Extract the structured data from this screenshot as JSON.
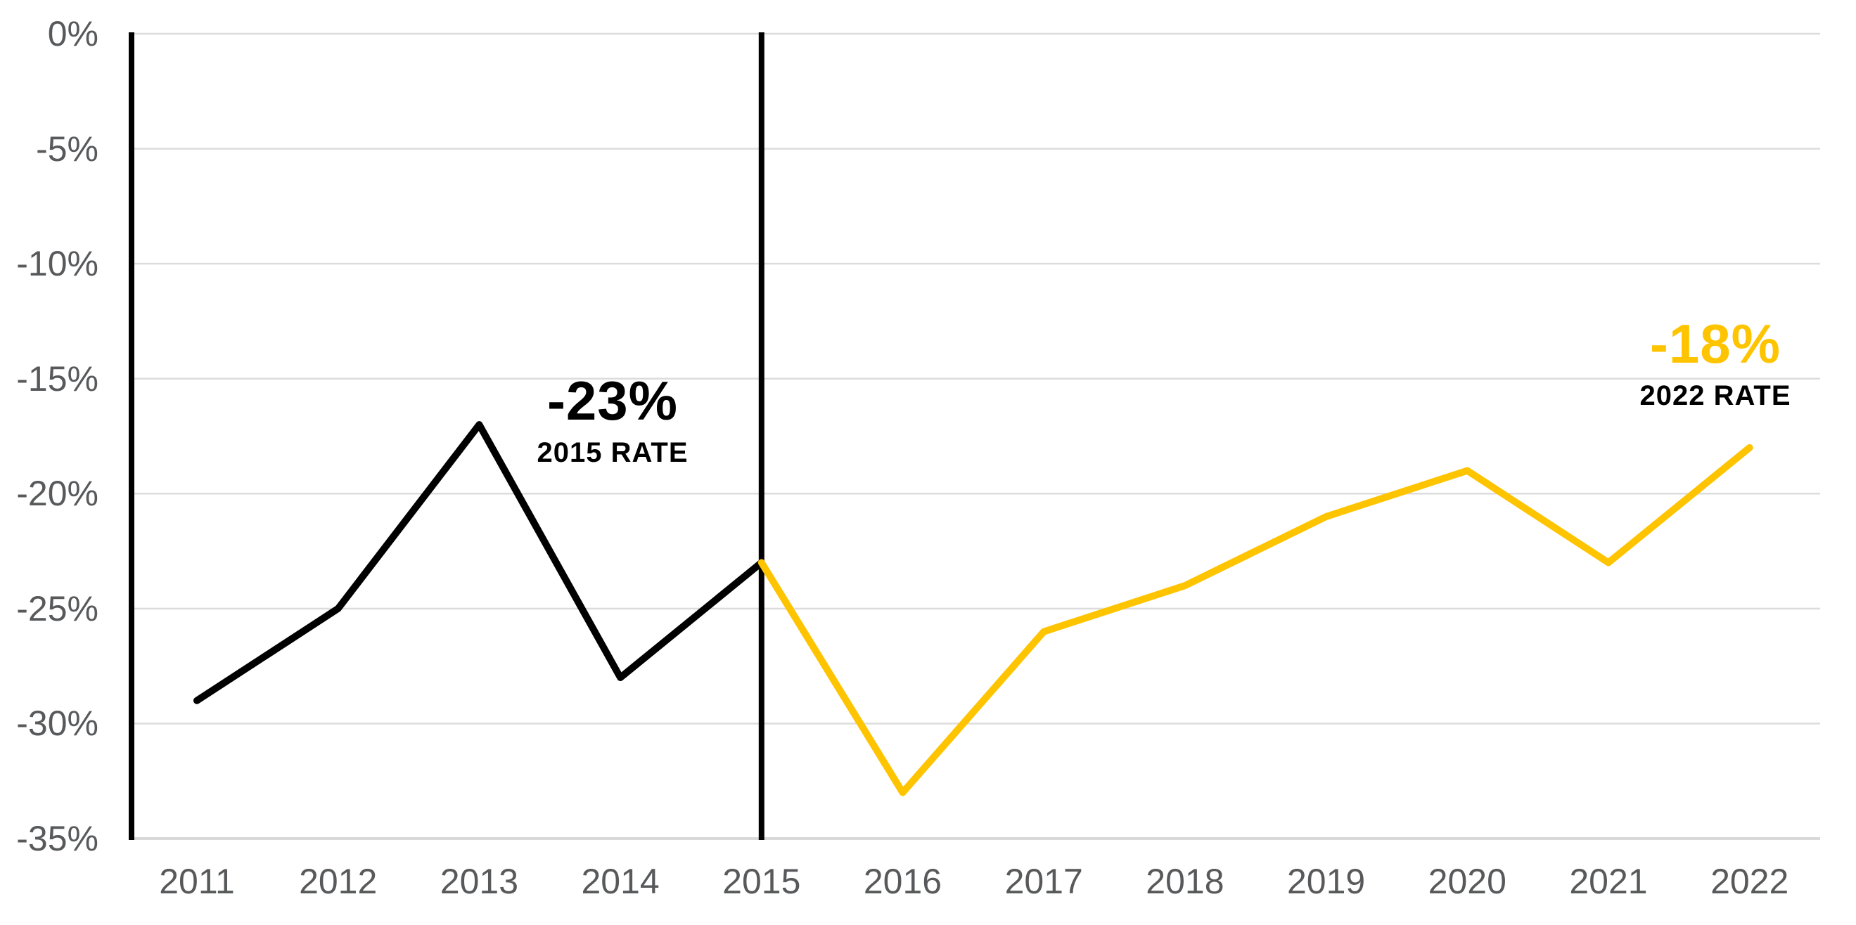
{
  "chart_data": {
    "type": "line",
    "x": [
      2011,
      2012,
      2013,
      2014,
      2015,
      2016,
      2017,
      2018,
      2019,
      2020,
      2021,
      2022
    ],
    "series": [
      {
        "name": "rate-2011-2015",
        "color": "#000000",
        "x": [
          2011,
          2012,
          2013,
          2014,
          2015
        ],
        "values": [
          -29,
          -25,
          -17,
          -28,
          -23
        ]
      },
      {
        "name": "rate-2015-2022",
        "color": "#FFC400",
        "x": [
          2015,
          2016,
          2017,
          2018,
          2019,
          2020,
          2021,
          2022
        ],
        "values": [
          -23,
          -33,
          -26,
          -24,
          -21,
          -19,
          -23,
          -18
        ]
      }
    ],
    "ylim": [
      -35,
      0
    ],
    "y_axis": {
      "tick_values": [
        0,
        -5,
        -10,
        -15,
        -20,
        -25,
        -30,
        -35
      ],
      "tick_labels": [
        "0%",
        "-5%",
        "-10%",
        "-15%",
        "-20%",
        "-25%",
        "-30%",
        "-35%"
      ]
    },
    "x_axis": {
      "tick_labels": [
        "2011",
        "2012",
        "2013",
        "2014",
        "2015",
        "2016",
        "2017",
        "2018",
        "2019",
        "2020",
        "2021",
        "2022"
      ]
    },
    "grid": "horizontal",
    "legend": "none",
    "vertical_markers": {
      "axis_start_year": 2011,
      "divider_year": 2015,
      "color": "#000000"
    },
    "annotations": [
      {
        "value_label": "-23%",
        "caption": "2015 RATE",
        "value_color": "#000000",
        "caption_color": "#000000",
        "anchor_year": 2015
      },
      {
        "value_label": "-18%",
        "caption": "2022 RATE",
        "value_color": "#FFC400",
        "caption_color": "#000000",
        "anchor_year": 2022
      }
    ],
    "style_colors": {
      "gridline": "#DCDCDC",
      "baseline": "#D9D9D9",
      "tick_text": "#58595B",
      "accent_yellow": "#FFC400",
      "accent_black": "#000000"
    }
  }
}
